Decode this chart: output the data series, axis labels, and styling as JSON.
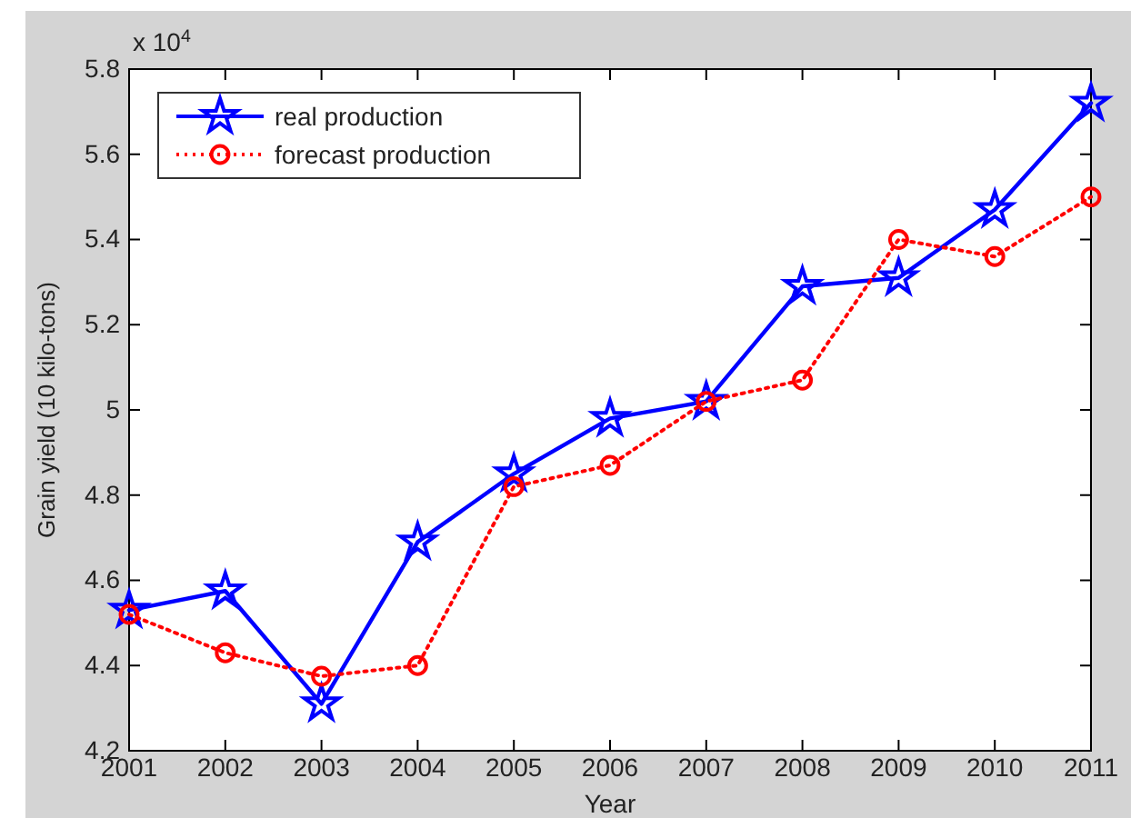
{
  "chart_data": {
    "type": "line",
    "xlabel": "Year",
    "ylabel": "Grain  yield  (10 kilo-tons)",
    "x": [
      2001,
      2002,
      2003,
      2004,
      2005,
      2006,
      2007,
      2008,
      2009,
      2010,
      2011
    ],
    "xlim": [
      2001,
      2011
    ],
    "xticks": [
      2001,
      2002,
      2003,
      2004,
      2005,
      2006,
      2007,
      2008,
      2009,
      2010,
      2011
    ],
    "ylim": [
      4.2,
      5.8
    ],
    "yticks": [
      4.2,
      4.4,
      4.6,
      4.8,
      {
        "value": 5,
        "label": "5"
      },
      5.2,
      5.4,
      5.6,
      5.8
    ],
    "annotations": [
      "x 10$^{4}$"
    ],
    "legend": "top left",
    "grid": false,
    "series": [
      {
        "name": "real production",
        "color": "#0000ff",
        "marker": "star",
        "line_style": "solid",
        "values": [
          4.53,
          4.575,
          4.31,
          4.69,
          4.85,
          4.98,
          5.02,
          5.29,
          5.31,
          5.47,
          5.72
        ]
      },
      {
        "name": "forecast production",
        "color": "#ff0000",
        "marker": "circle",
        "line_style": "dotted",
        "values": [
          4.52,
          4.43,
          4.375,
          4.4,
          4.82,
          4.87,
          5.02,
          5.07,
          5.4,
          5.36,
          5.5
        ]
      }
    ]
  }
}
